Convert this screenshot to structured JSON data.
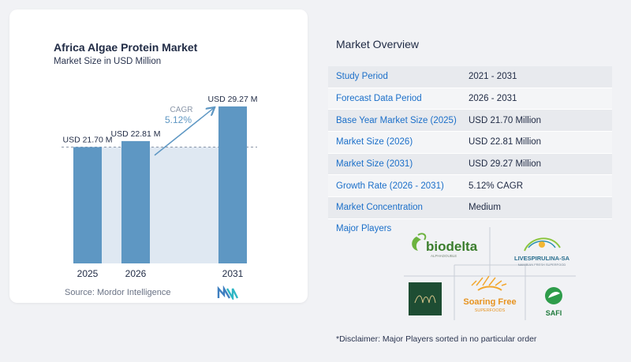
{
  "chart_data": {
    "type": "bar",
    "title": "Africa Algae Protein Market",
    "subtitle": "Market Size in USD Million",
    "categories": [
      "2025",
      "2026",
      "2031"
    ],
    "values": [
      21.7,
      22.81,
      29.27
    ],
    "value_labels": [
      "USD 21.70 M",
      "USD 22.81 M",
      "USD 29.27 M"
    ],
    "cagr_label": "CAGR",
    "cagr_value": "5.12%",
    "bar_color": "#5e97c3",
    "highlight_color": "#dfe8f2",
    "arrow_color": "#5e97c3",
    "ylim": [
      0,
      30
    ]
  },
  "source": "Source:  Mordor Intelligence",
  "overview": {
    "title": "Market Overview",
    "rows": [
      {
        "label": "Study Period",
        "value": "2021 - 2031"
      },
      {
        "label": "Forecast Data Period",
        "value": "2026 - 2031"
      },
      {
        "label": "Base Year Market Size (2025)",
        "value": "USD 21.70 Million"
      },
      {
        "label": "Market Size (2026)",
        "value": "USD 22.81 Million"
      },
      {
        "label": "Market Size (2031)",
        "value": "USD 29.27 Million"
      },
      {
        "label": "Growth Rate (2026 - 2031)",
        "value": "5.12% CAGR"
      },
      {
        "label": "Market Concentration",
        "value": "Medium"
      }
    ]
  },
  "players": {
    "title": "Major Players",
    "logos": {
      "biodelta": {
        "name": "biodelta",
        "tagline": "ALPHADOUBLE"
      },
      "livespirulina": {
        "name": "LIVESPIRULINA-SA",
        "tagline": "NAMIBIAN FRESH SUPERFOOD"
      },
      "soaring": {
        "name": "Soaring Free",
        "tagline": "SUPERFOODS"
      },
      "safi": {
        "name": "SAFI"
      }
    }
  },
  "disclaimer": "*Disclaimer: Major Players sorted in no particular order"
}
